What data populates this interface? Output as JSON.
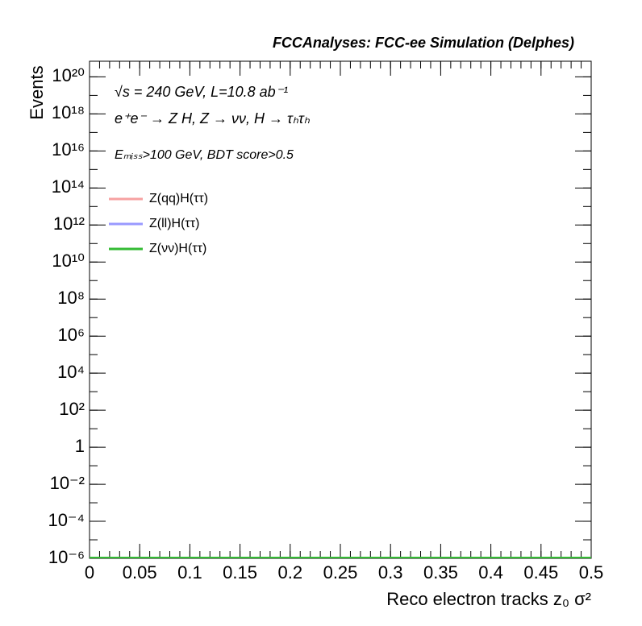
{
  "chart_data": {
    "type": "histogram",
    "title": "FCCAnalyses: FCC-ee Simulation (Delphes)",
    "annotations": [
      "√s = 240 GeV, L=10.8 ab⁻¹",
      "e⁺e⁻ → Z H, Z → νν, H → τₕτₕ",
      "Eₘᵢₛₛ>100 GeV, BDT score>0.5"
    ],
    "x_label": "Reco electron tracks z₀ σ²",
    "y_label": "Events",
    "bins": [
      0,
      0.5
    ],
    "series": [
      {
        "name": "Z(qq)H(ττ)",
        "color": "#f7a1a1",
        "values": [
          1e-06
        ]
      },
      {
        "name": "Z(ll)H(ττ)",
        "color": "#9999ff",
        "values": [
          1e-06
        ]
      },
      {
        "name": "Z(νν)H(ττ)",
        "color": "#33bb33",
        "values": [
          1e-06
        ]
      }
    ],
    "xlim": [
      0,
      0.5
    ],
    "xticks": [
      0,
      0.05,
      0.1,
      0.15,
      0.2,
      0.25,
      0.3,
      0.35,
      0.4,
      0.45,
      0.5
    ],
    "ylim": [
      1e-06,
      7e+20
    ],
    "log_y": true,
    "yticks": [
      {
        "value": 1e-06,
        "label": "10⁻⁶"
      },
      {
        "value": 0.0001,
        "label": "10⁻⁴"
      },
      {
        "value": 0.01,
        "label": "10⁻²"
      },
      1,
      {
        "value": 100,
        "label": "10²"
      },
      {
        "value": 10000.0,
        "label": "10⁴"
      },
      {
        "value": 1000000.0,
        "label": "10⁶"
      },
      {
        "value": 100000000.0,
        "label": "10⁸"
      },
      {
        "value": 10000000000.0,
        "label": "10¹⁰"
      },
      {
        "value": 1000000000000.0,
        "label": "10¹²"
      },
      {
        "value": 100000000000000.0,
        "label": "10¹⁴"
      },
      {
        "value": 1e+16,
        "label": "10¹⁶"
      },
      {
        "value": 1e+18,
        "label": "10¹⁸"
      },
      {
        "value": 1e+20,
        "label": "10²⁰"
      }
    ],
    "legend_position": "upper left"
  }
}
